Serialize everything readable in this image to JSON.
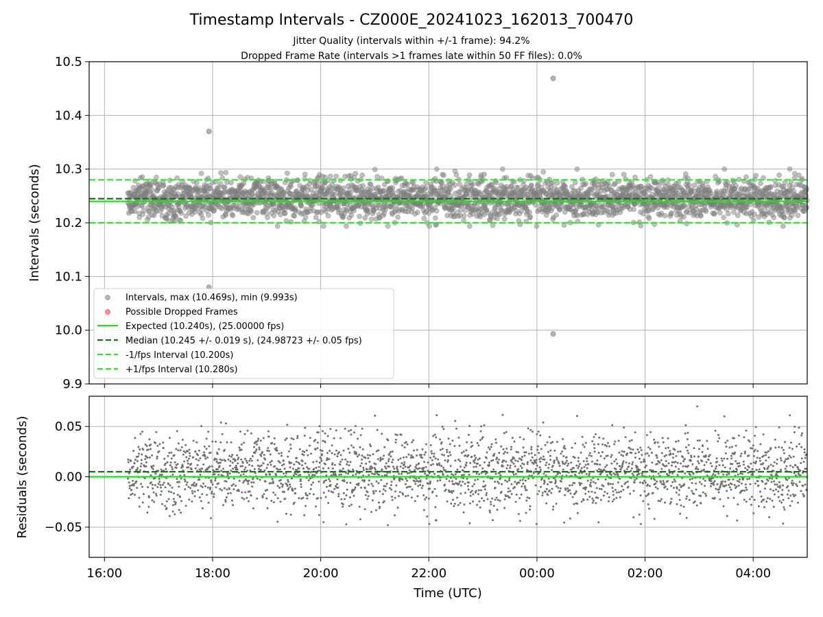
{
  "figure": {
    "title": "Timestamp Intervals - CZ000E_20241023_162013_700470",
    "subtitle_1": "Jitter Quality (intervals within +/-1 frame): 94.2%",
    "subtitle_2": "Dropped Frame Rate (intervals >1 frames late within 50 FF files): 0.0%"
  },
  "colors": {
    "points": "#808080",
    "dropped": "#ff4040",
    "expected": "#22dd22",
    "median": "#117711",
    "fps_bounds": "#22ee22",
    "grid": "#b0b0b0"
  },
  "chart_data": [
    {
      "type": "scatter",
      "panel": "top",
      "ylabel": "Intervals (seconds)",
      "xlim": [
        "2024-10-23T15:43",
        "2024-10-24T05:00"
      ],
      "ylim": [
        9.9,
        10.5
      ],
      "yticks": [
        "9.9",
        "10.0",
        "10.1",
        "10.2",
        "10.3",
        "10.4",
        "10.5"
      ],
      "grid": true,
      "legend_position": "lower-left",
      "series": [
        {
          "name": "Intervals, max (10.469s), min (9.993s)",
          "kind": "scatter",
          "x_range": [
            "2024-10-23T16:26",
            "2024-10-24T05:00"
          ],
          "center": 10.245,
          "spread": 0.019,
          "outliers": [
            {
              "x": "2024-10-23T17:56",
              "y": 10.37
            },
            {
              "x": "2024-10-23T17:56",
              "y": 10.08
            },
            {
              "x": "2024-10-24T00:18",
              "y": 10.469
            },
            {
              "x": "2024-10-24T00:18",
              "y": 9.993
            }
          ]
        },
        {
          "name": "Possible Dropped Frames",
          "kind": "scatter",
          "points": []
        }
      ],
      "reference_lines": [
        {
          "name": "Expected (10.240s), (25.00000 fps)",
          "y": 10.24,
          "style": "solid"
        },
        {
          "name": "Median (10.245 +/- 0.019 s), (24.98723 +/- 0.05 fps)",
          "y": 10.245,
          "style": "dashed"
        },
        {
          "name": "-1/fps Interval (10.200s)",
          "y": 10.2,
          "style": "dashed"
        },
        {
          "name": "+1/fps Interval (10.280s)",
          "y": 10.28,
          "style": "dashed"
        }
      ]
    },
    {
      "type": "scatter",
      "panel": "bottom",
      "xlabel": "Time (UTC)",
      "ylabel": "Residuals (seconds)",
      "xlim": [
        "2024-10-23T15:43",
        "2024-10-24T05:00"
      ],
      "ylim": [
        -0.08,
        0.08
      ],
      "xticks": [
        "16:00",
        "18:00",
        "20:00",
        "22:00",
        "00:00",
        "02:00",
        "04:00"
      ],
      "yticks": [
        "−0.05",
        "0.00",
        "0.05"
      ],
      "grid": true,
      "series": [
        {
          "kind": "scatter",
          "x_range": [
            "2024-10-23T16:26",
            "2024-10-24T05:00"
          ],
          "center": 0.005,
          "spread": 0.019,
          "outliers": [
            {
              "x": "2024-10-24T02:58",
              "y": 0.07
            }
          ]
        }
      ],
      "reference_lines": [
        {
          "y": 0.0,
          "style": "solid"
        },
        {
          "y": 0.005,
          "style": "dashed"
        }
      ]
    }
  ]
}
